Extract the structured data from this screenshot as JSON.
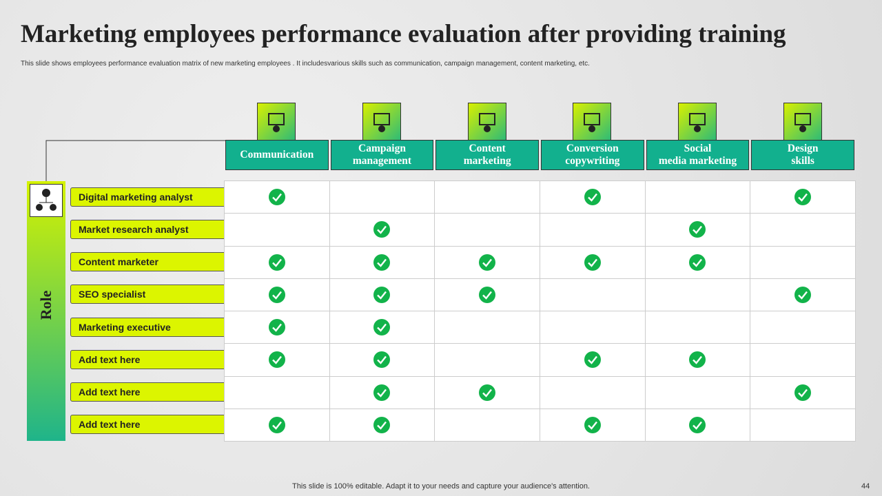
{
  "header": {
    "title": "Marketing employees performance evaluation after providing training",
    "subtitle": "This slide shows employees performance evaluation matrix of new marketing employees . It includesvarious skills such as communication, campaign management, content marketing, etc."
  },
  "table": {
    "role_label": "Role",
    "columns": [
      "Communication",
      "Campaign\nmanagement",
      "Content\nmarketing",
      "Conversion\ncopywriting",
      "Social\nmedia marketing",
      "Design\nskills"
    ],
    "rows": [
      {
        "role": "Digital marketing analyst",
        "checks": [
          true,
          false,
          false,
          true,
          false,
          true
        ]
      },
      {
        "role": "Market research analyst",
        "checks": [
          false,
          true,
          false,
          false,
          true,
          false
        ]
      },
      {
        "role": "Content marketer",
        "checks": [
          true,
          true,
          true,
          true,
          true,
          false
        ]
      },
      {
        "role": "SEO specialist",
        "checks": [
          true,
          true,
          true,
          false,
          false,
          true
        ]
      },
      {
        "role": "Marketing executive",
        "checks": [
          true,
          true,
          false,
          false,
          false,
          false
        ]
      },
      {
        "role": "Add text here",
        "checks": [
          true,
          true,
          false,
          true,
          true,
          false
        ]
      },
      {
        "role": "Add text here",
        "checks": [
          false,
          true,
          true,
          false,
          false,
          true
        ]
      },
      {
        "role": "Add text here",
        "checks": [
          true,
          true,
          false,
          true,
          true,
          false
        ]
      }
    ]
  },
  "footer": {
    "note": "This slide is 100% editable. Adapt it to your needs and capture your audience's attention.",
    "page": "44"
  }
}
